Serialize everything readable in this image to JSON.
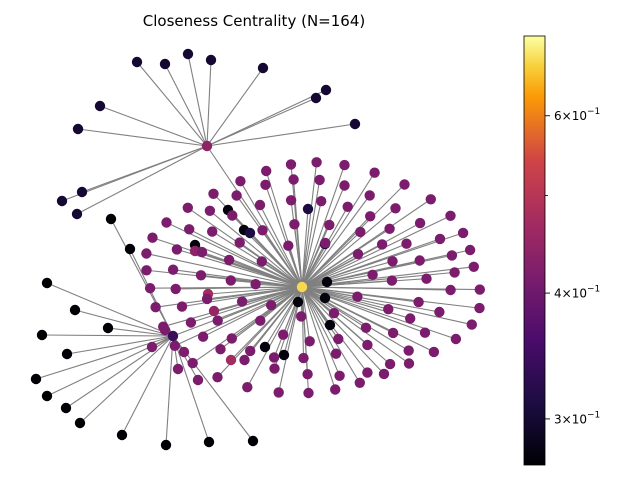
{
  "chart_data": {
    "type": "network",
    "title": "Closeness Centrality (N=164)",
    "colormap": "inferno",
    "colorbar": {
      "scale": "log",
      "range": [
        0.27,
        0.72
      ],
      "ticks": [
        {
          "value": 0.3,
          "base": "3",
          "mult": "×10",
          "exp": "−1"
        },
        {
          "value": 0.4,
          "base": "4",
          "mult": "×10",
          "exp": "−1"
        },
        {
          "value": 0.6,
          "base": "6",
          "mult": "×10",
          "exp": "−1"
        }
      ],
      "minor_ticks": [
        0.5
      ]
    },
    "node_count": 164,
    "hubs": [
      {
        "id": "center",
        "value": 0.68
      },
      {
        "id": "top",
        "value": 0.44
      },
      {
        "id": "left",
        "value": 0.34
      }
    ]
  }
}
